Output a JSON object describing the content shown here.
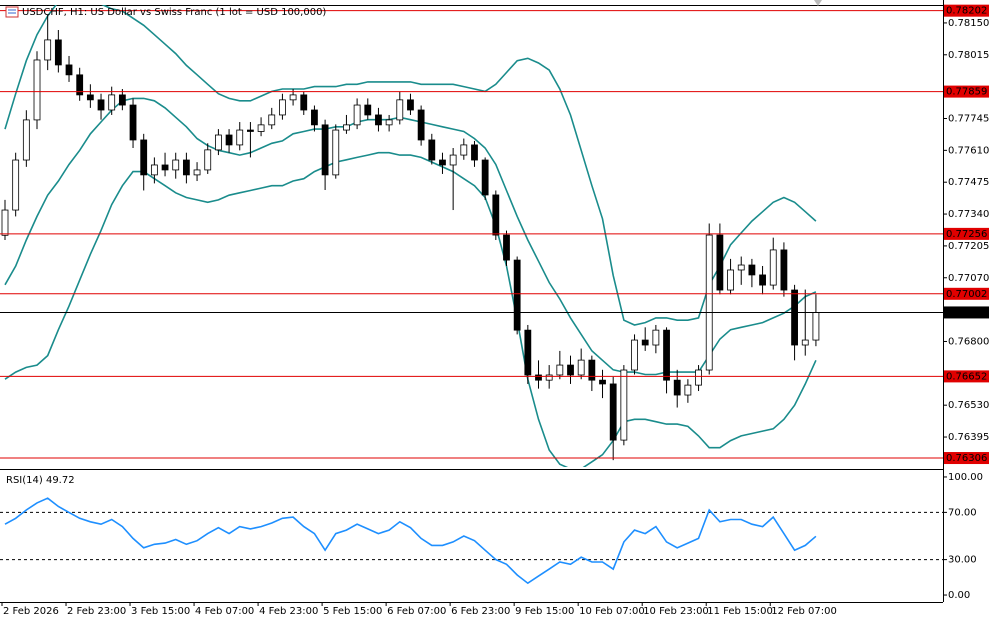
{
  "chart_data": [
    {
      "type": "candlestick",
      "title": "USDCHF, H1:  US Dollar vs Swiss Franc (1 lot = USD 100,000)",
      "categories": [
        "2 Feb 2026",
        null,
        null,
        null,
        null,
        null,
        "2 Feb 23:00",
        null,
        null,
        null,
        null,
        null,
        "3 Feb 15:00",
        null,
        null,
        null,
        null,
        null,
        "4 Feb 07:00",
        null,
        null,
        null,
        null,
        null,
        "4 Feb 23:00",
        null,
        null,
        null,
        null,
        null,
        "5 Feb 15:00",
        null,
        null,
        null,
        null,
        null,
        "6 Feb 07:00",
        null,
        null,
        null,
        null,
        null,
        "6 Feb 23:00",
        null,
        null,
        null,
        null,
        null,
        "9 Feb 15:00",
        null,
        null,
        null,
        null,
        null,
        "10 Feb 07:00",
        null,
        null,
        null,
        null,
        null,
        "10 Feb 23:00",
        null,
        null,
        null,
        null,
        null,
        "11 Feb 15:00",
        null,
        null,
        null,
        null,
        null,
        "12 Feb 07:00",
        null,
        null,
        null,
        null
      ],
      "ohlc": [
        [
          0.7725,
          0.774,
          0.7723,
          0.77357
        ],
        [
          0.77357,
          0.776,
          0.7733,
          0.77569
        ],
        [
          0.77569,
          0.7778,
          0.7754,
          0.77739
        ],
        [
          0.77739,
          0.7803,
          0.777,
          0.77993
        ],
        [
          0.77993,
          0.78184,
          0.7795,
          0.78078
        ],
        [
          0.78078,
          0.7812,
          0.7794,
          0.77972
        ],
        [
          0.77972,
          0.7801,
          0.779,
          0.7793
        ],
        [
          0.7793,
          0.7796,
          0.7782,
          0.77845
        ],
        [
          0.77845,
          0.7789,
          0.7779,
          0.77824
        ],
        [
          0.77824,
          0.7785,
          0.7774,
          0.77781
        ],
        [
          0.77781,
          0.7788,
          0.7776,
          0.77845
        ],
        [
          0.77845,
          0.7787,
          0.7778,
          0.77802
        ],
        [
          0.77802,
          0.7783,
          0.7762,
          0.77654
        ],
        [
          0.77654,
          0.7768,
          0.7744,
          0.77506
        ],
        [
          0.77506,
          0.7758,
          0.7747,
          0.77548
        ],
        [
          0.77548,
          0.776,
          0.775,
          0.77527
        ],
        [
          0.77527,
          0.776,
          0.7749,
          0.77569
        ],
        [
          0.77569,
          0.776,
          0.7747,
          0.77506
        ],
        [
          0.77506,
          0.7756,
          0.7748,
          0.77527
        ],
        [
          0.77527,
          0.7764,
          0.7751,
          0.77612
        ],
        [
          0.77612,
          0.777,
          0.7759,
          0.77675
        ],
        [
          0.77675,
          0.777,
          0.776,
          0.77633
        ],
        [
          0.77633,
          0.7773,
          0.7761,
          0.77696
        ],
        [
          0.77696,
          0.7773,
          0.7758,
          0.7769
        ],
        [
          0.7769,
          0.7775,
          0.7767,
          0.77718
        ],
        [
          0.77718,
          0.7779,
          0.777,
          0.7776
        ],
        [
          0.7776,
          0.7785,
          0.7774,
          0.77824
        ],
        [
          0.77824,
          0.7787,
          0.778,
          0.77845
        ],
        [
          0.77845,
          0.7786,
          0.7776,
          0.77781
        ],
        [
          0.77781,
          0.778,
          0.7769,
          0.77718
        ],
        [
          0.77718,
          0.7774,
          0.77442,
          0.77506
        ],
        [
          0.77506,
          0.7772,
          0.7749,
          0.77696
        ],
        [
          0.77696,
          0.7776,
          0.7768,
          0.77718
        ],
        [
          0.77718,
          0.7783,
          0.777,
          0.77802
        ],
        [
          0.77802,
          0.7783,
          0.7774,
          0.7776
        ],
        [
          0.7776,
          0.7779,
          0.7769,
          0.77718
        ],
        [
          0.77718,
          0.7776,
          0.7769,
          0.77739
        ],
        [
          0.77739,
          0.7786,
          0.7772,
          0.77824
        ],
        [
          0.77824,
          0.7785,
          0.7776,
          0.77781
        ],
        [
          0.77781,
          0.778,
          0.7763,
          0.77654
        ],
        [
          0.77654,
          0.7768,
          0.7755,
          0.77569
        ],
        [
          0.77569,
          0.776,
          0.7751,
          0.77548
        ],
        [
          0.77548,
          0.7762,
          0.77357,
          0.7759
        ],
        [
          0.7759,
          0.7766,
          0.7757,
          0.77633
        ],
        [
          0.77633,
          0.7765,
          0.7754,
          0.77569
        ],
        [
          0.77569,
          0.7758,
          0.774,
          0.77421
        ],
        [
          0.77421,
          0.7744,
          0.7723,
          0.77251
        ],
        [
          0.77251,
          0.7727,
          0.7712,
          0.77145
        ],
        [
          0.77145,
          0.7716,
          0.7683,
          0.76848
        ],
        [
          0.76848,
          0.7687,
          0.7662,
          0.76658
        ],
        [
          0.76658,
          0.7672,
          0.766,
          0.76636
        ],
        [
          0.76636,
          0.767,
          0.766,
          0.76658
        ],
        [
          0.76658,
          0.7676,
          0.7664,
          0.767
        ],
        [
          0.767,
          0.7674,
          0.7662,
          0.76658
        ],
        [
          0.76658,
          0.7677,
          0.7664,
          0.76721
        ],
        [
          0.76721,
          0.7674,
          0.7659,
          0.76636
        ],
        [
          0.76636,
          0.7668,
          0.7656,
          0.7662
        ],
        [
          0.7662,
          0.7665,
          0.76297,
          0.76382
        ],
        [
          0.76382,
          0.767,
          0.7636,
          0.76679
        ],
        [
          0.76679,
          0.7683,
          0.7666,
          0.76806
        ],
        [
          0.76806,
          0.7686,
          0.7676,
          0.76785
        ],
        [
          0.76785,
          0.7687,
          0.7675,
          0.76848
        ],
        [
          0.76848,
          0.7686,
          0.7658,
          0.76636
        ],
        [
          0.76636,
          0.7668,
          0.7652,
          0.76573
        ],
        [
          0.76573,
          0.7664,
          0.7654,
          0.76615
        ],
        [
          0.76615,
          0.767,
          0.7659,
          0.76679
        ],
        [
          0.76679,
          0.773,
          0.7666,
          0.77251
        ],
        [
          0.77251,
          0.773,
          0.77,
          0.77018
        ],
        [
          0.77018,
          0.7715,
          0.77,
          0.77103
        ],
        [
          0.77103,
          0.7716,
          0.7704,
          0.77124
        ],
        [
          0.77124,
          0.7715,
          0.7703,
          0.77082
        ],
        [
          0.77082,
          0.7712,
          0.77,
          0.77039
        ],
        [
          0.77039,
          0.7724,
          0.7702,
          0.77188
        ],
        [
          0.77188,
          0.7722,
          0.7699,
          0.77018
        ],
        [
          0.77018,
          0.7704,
          0.7672,
          0.76785
        ],
        [
          0.76785,
          0.7702,
          0.7674,
          0.76806
        ],
        [
          0.76806,
          0.77,
          0.7678,
          0.76923
        ]
      ],
      "up_color": "#ffffff",
      "down_color": "#000000",
      "candle_stroke": "#000000",
      "bands": {
        "color": "#1a8c8c",
        "upper": [
          0.777,
          0.7785,
          0.7799,
          0.781,
          0.7818,
          0.7824,
          0.7825,
          0.7825,
          0.7824,
          0.7823,
          0.7821,
          0.782,
          0.7817,
          0.7814,
          0.781,
          0.7806,
          0.7802,
          0.7797,
          0.7793,
          0.7789,
          0.7785,
          0.7783,
          0.7782,
          0.7782,
          0.7784,
          0.7786,
          0.7787,
          0.7787,
          0.7787,
          0.7788,
          0.7788,
          0.7788,
          0.7789,
          0.7789,
          0.779,
          0.779,
          0.779,
          0.779,
          0.779,
          0.7789,
          0.7789,
          0.7789,
          0.7789,
          0.7788,
          0.7787,
          0.7786,
          0.7789,
          0.7794,
          0.7799,
          0.78,
          0.7798,
          0.7795,
          0.7787,
          0.7776,
          0.7761,
          0.7746,
          0.7732,
          0.7708,
          0.7689,
          0.7687,
          0.7688,
          0.769,
          0.769,
          0.7689,
          0.7689,
          0.769,
          0.7704,
          0.7712,
          0.7721,
          0.7726,
          0.7731,
          0.7735,
          0.7739,
          0.7741,
          0.7739,
          0.7735,
          0.7731
        ],
        "middle": [
          0.7704,
          0.7712,
          0.7723,
          0.7733,
          0.7742,
          0.7748,
          0.7755,
          0.7761,
          0.7768,
          0.7773,
          0.7778,
          0.7782,
          0.7783,
          0.7783,
          0.7782,
          0.7779,
          0.7775,
          0.7771,
          0.7766,
          0.7763,
          0.7761,
          0.776,
          0.7759,
          0.776,
          0.7762,
          0.7764,
          0.7765,
          0.7768,
          0.7769,
          0.777,
          0.777,
          0.7771,
          0.7771,
          0.7773,
          0.7774,
          0.7774,
          0.7774,
          0.7775,
          0.7774,
          0.7773,
          0.7772,
          0.7771,
          0.777,
          0.7769,
          0.7766,
          0.7762,
          0.7755,
          0.7744,
          0.7733,
          0.7723,
          0.7714,
          0.7705,
          0.7698,
          0.769,
          0.7683,
          0.7676,
          0.7672,
          0.7668,
          0.7667,
          0.7667,
          0.7666,
          0.7666,
          0.7667,
          0.7667,
          0.7667,
          0.7667,
          0.7674,
          0.7681,
          0.7685,
          0.7686,
          0.7687,
          0.7688,
          0.769,
          0.7692,
          0.7695,
          0.7699,
          0.7701
        ],
        "lower": [
          0.7664,
          0.7667,
          0.7669,
          0.767,
          0.7674,
          0.7685,
          0.7695,
          0.7706,
          0.7717,
          0.7727,
          0.7738,
          0.7746,
          0.7752,
          0.7752,
          0.7749,
          0.7746,
          0.7743,
          0.7741,
          0.774,
          0.7739,
          0.774,
          0.7742,
          0.7743,
          0.7744,
          0.7745,
          0.7746,
          0.7746,
          0.7748,
          0.7749,
          0.7752,
          0.7754,
          0.7756,
          0.7757,
          0.7758,
          0.7759,
          0.776,
          0.776,
          0.7759,
          0.7759,
          0.7758,
          0.7756,
          0.7754,
          0.7752,
          0.7749,
          0.7746,
          0.7741,
          0.7729,
          0.7712,
          0.7689,
          0.7664,
          0.7647,
          0.7634,
          0.7628,
          0.7626,
          0.7626,
          0.7629,
          0.7632,
          0.7638,
          0.7646,
          0.7647,
          0.7647,
          0.7646,
          0.7645,
          0.7645,
          0.7644,
          0.764,
          0.7635,
          0.7635,
          0.7638,
          0.764,
          0.7641,
          0.7642,
          0.7643,
          0.7647,
          0.7653,
          0.7662,
          0.7672
        ]
      },
      "levels": [
        {
          "value": 0.78202,
          "color": "#e00000"
        },
        {
          "value": 0.77859,
          "color": "#e00000"
        },
        {
          "value": 0.77256,
          "color": "#e00000"
        },
        {
          "value": 0.77002,
          "color": "#e00000"
        },
        {
          "value": 0.76652,
          "color": "#e00000"
        },
        {
          "value": 0.76306,
          "color": "#e00000"
        }
      ],
      "current_price": {
        "value": 0.76923,
        "color": "#000000"
      },
      "ylim": [
        0.76268,
        0.78226
      ],
      "yticks": [
        {
          "value": 0.7815,
          "label": "0.78150"
        },
        0.78015,
        0.77745,
        {
          "value": 0.7761,
          "label": "0.77610"
        },
        0.77475,
        {
          "value": 0.7734,
          "label": "0.77340"
        },
        0.77205,
        {
          "value": 0.7707,
          "label": "0.77070"
        },
        {
          "value": 0.768,
          "label": "0.76800"
        },
        {
          "value": 0.7653,
          "label": "0.76530"
        },
        0.76395
      ]
    },
    {
      "type": "line",
      "title": "RSI(14) 49.72",
      "color": "#1e8fff",
      "values": [
        60,
        65,
        72,
        78,
        82,
        75,
        70,
        65,
        62,
        60,
        64,
        58,
        48,
        40,
        43,
        44,
        47,
        43,
        46,
        52,
        57,
        52,
        58,
        56,
        58,
        61,
        65,
        66,
        58,
        52,
        38,
        52,
        55,
        60,
        56,
        52,
        55,
        62,
        57,
        48,
        42,
        42,
        45,
        50,
        46,
        38,
        30,
        26,
        17,
        10,
        16,
        22,
        28,
        26,
        32,
        28,
        28,
        22,
        45,
        55,
        52,
        58,
        45,
        40,
        44,
        48,
        72,
        62,
        64,
        64,
        60,
        58,
        66,
        52,
        38,
        42,
        49.72
      ],
      "levels": [
        70,
        30
      ],
      "ylim": [
        -5.9,
        104.2
      ],
      "yticks": [
        {
          "value": 100,
          "label": "100.00"
        },
        {
          "value": 70,
          "label": "70.00"
        },
        {
          "value": 30,
          "label": "30.00"
        },
        {
          "value": 0,
          "label": "0.00"
        }
      ]
    }
  ]
}
